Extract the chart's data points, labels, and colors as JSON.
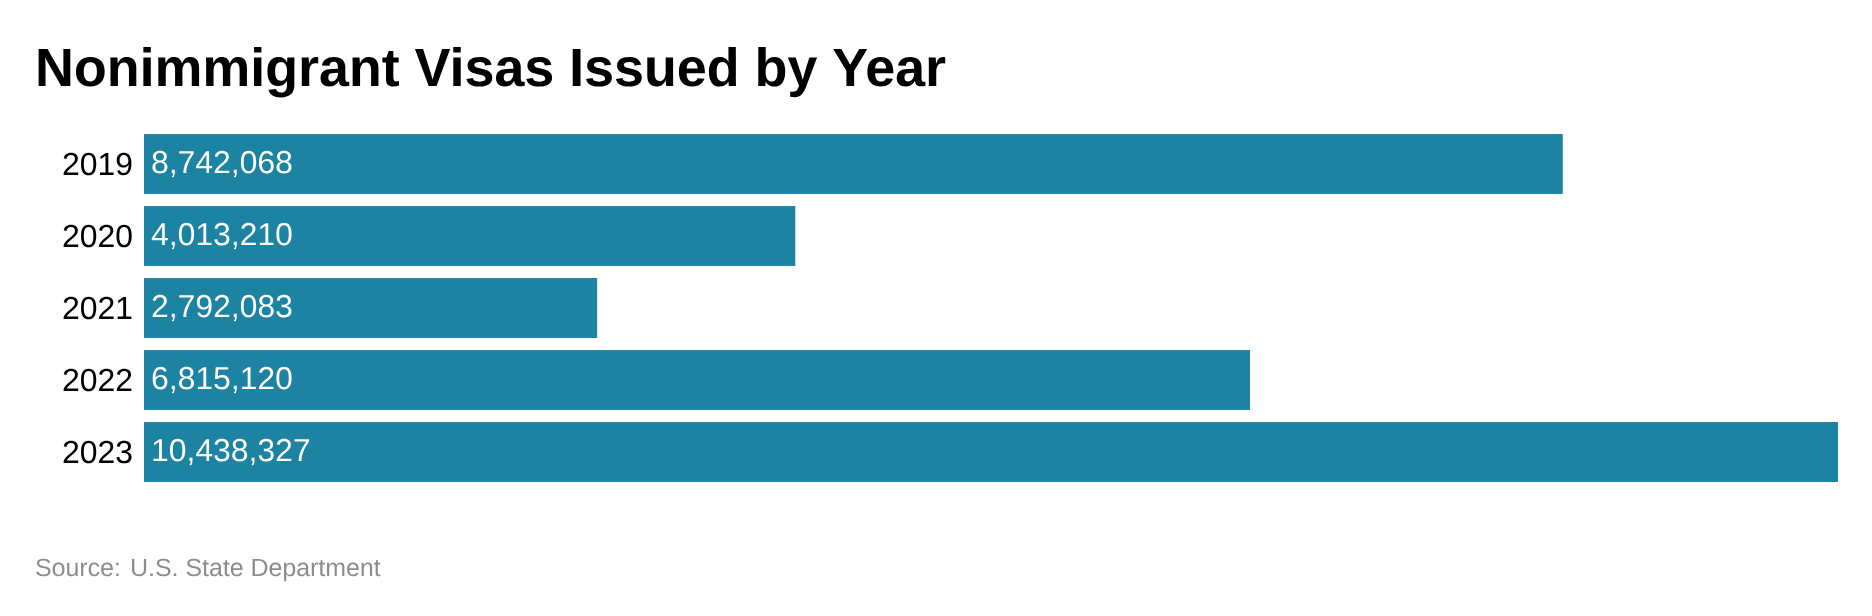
{
  "chart_data": {
    "type": "bar",
    "orientation": "horizontal",
    "title": "Nonimmigrant Visas Issued by Year",
    "categories": [
      "2019",
      "2020",
      "2021",
      "2022",
      "2023"
    ],
    "values": [
      8742068,
      4013210,
      2792083,
      6815120,
      10438327
    ],
    "value_labels": [
      "8,742,068",
      "4,013,210",
      "2,792,083",
      "6,815,120",
      "10,438,327"
    ],
    "color": "#1d83a3",
    "annotations": [
      "Source: U.S. State Department"
    ]
  }
}
